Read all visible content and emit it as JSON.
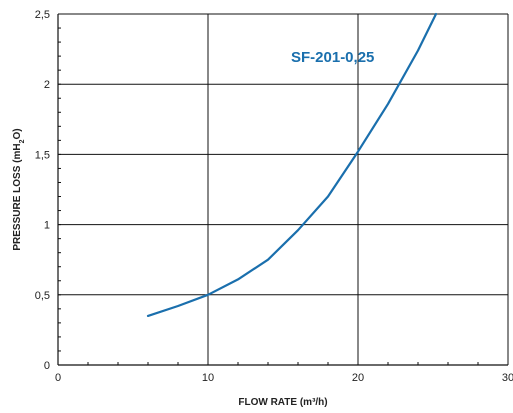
{
  "chart_data": {
    "type": "line",
    "title": "",
    "xlabel": "FLOW RATE (m³/h)",
    "ylabel_main": "PRESSURE LOSS (mH",
    "ylabel_sub": "2",
    "ylabel_end": "O)",
    "xlim": [
      0,
      30
    ],
    "ylim": [
      0,
      2.5
    ],
    "x_ticks": [
      0,
      10,
      20,
      30
    ],
    "x_tick_labels": [
      "0",
      "10",
      "20",
      "30"
    ],
    "y_ticks": [
      0,
      0.5,
      1,
      1.5,
      2,
      2.5
    ],
    "y_tick_labels": [
      "0",
      "0,5",
      "1",
      "1,5",
      "2",
      "2,5"
    ],
    "grid": true,
    "legend": "none",
    "series": [
      {
        "name": "SF-201-0,25",
        "color": "#1a6fad",
        "x": [
          6,
          8,
          10,
          12,
          14,
          16,
          18,
          20,
          22,
          24,
          25.2
        ],
        "y": [
          0.35,
          0.42,
          0.5,
          0.61,
          0.75,
          0.96,
          1.2,
          1.52,
          1.86,
          2.24,
          2.5
        ]
      }
    ]
  }
}
